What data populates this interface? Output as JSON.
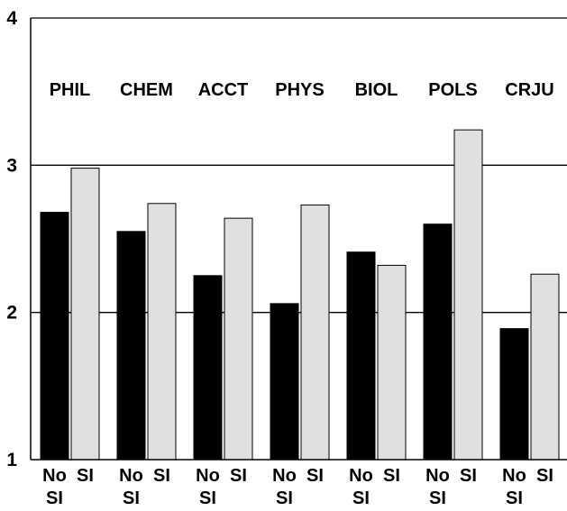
{
  "chart_data": {
    "type": "bar",
    "title": "",
    "xlabel": "",
    "ylabel": "",
    "ylim": [
      1,
      4
    ],
    "yticks": [
      "1",
      "2",
      "3",
      "4"
    ],
    "grid": "horizontal",
    "categories": [
      "PHIL",
      "CHEM",
      "ACCT",
      "PHYS",
      "BIOL",
      "POLS",
      "CRJU"
    ],
    "bar_labels": [
      "No SI",
      "SI"
    ],
    "series": [
      {
        "name": "No SI",
        "color": "#000000",
        "values": [
          2.68,
          2.55,
          2.25,
          2.06,
          2.41,
          2.6,
          1.89
        ]
      },
      {
        "name": "SI",
        "color": "#e0e0e2",
        "values": [
          2.98,
          2.74,
          2.64,
          2.73,
          2.32,
          3.24,
          2.26
        ]
      }
    ]
  }
}
